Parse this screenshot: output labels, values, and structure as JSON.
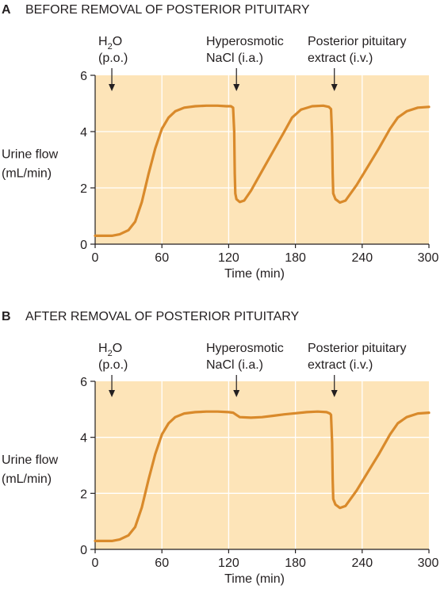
{
  "chart_data": [
    {
      "type": "line",
      "panel_letter": "A",
      "title": "BEFORE REMOVAL OF POSTERIOR PITUITARY",
      "xlabel": "Time (min)",
      "ylabel_lines": [
        "Urine flow",
        "(mL/min)"
      ],
      "xlim": [
        0,
        300
      ],
      "ylim": [
        0,
        6
      ],
      "xticks": [
        0,
        60,
        120,
        180,
        240,
        300
      ],
      "yticks": [
        0,
        2,
        4,
        6
      ],
      "grid": true,
      "background_color": "#fde4b8",
      "grid_color": "#ffffff",
      "line_color": "#d98a2b",
      "annotations": [
        {
          "x": 15,
          "lines": [
            "H2O",
            "(p.o.)"
          ]
        },
        {
          "x": 127,
          "lines": [
            "Hyperosmotic",
            "NaCl (i.a.)"
          ]
        },
        {
          "x": 215,
          "lines": [
            "Posterior pituitary",
            "extract (i.v.)"
          ]
        }
      ],
      "series": [
        {
          "points": [
            [
              0,
              0.3
            ],
            [
              15,
              0.3
            ],
            [
              22,
              0.35
            ],
            [
              30,
              0.5
            ],
            [
              36,
              0.8
            ],
            [
              42,
              1.5
            ],
            [
              48,
              2.5
            ],
            [
              54,
              3.4
            ],
            [
              60,
              4.1
            ],
            [
              66,
              4.5
            ],
            [
              72,
              4.72
            ],
            [
              80,
              4.85
            ],
            [
              90,
              4.9
            ],
            [
              100,
              4.92
            ],
            [
              110,
              4.92
            ],
            [
              118,
              4.9
            ],
            [
              122,
              4.9
            ],
            [
              124,
              4.85
            ],
            [
              125,
              4.0
            ],
            [
              125.5,
              2.5
            ],
            [
              126,
              1.8
            ],
            [
              127,
              1.6
            ],
            [
              130,
              1.5
            ],
            [
              134,
              1.55
            ],
            [
              140,
              1.9
            ],
            [
              150,
              2.6
            ],
            [
              160,
              3.3
            ],
            [
              170,
              4.0
            ],
            [
              177,
              4.5
            ],
            [
              185,
              4.78
            ],
            [
              195,
              4.9
            ],
            [
              205,
              4.92
            ],
            [
              210,
              4.88
            ],
            [
              212,
              4.8
            ],
            [
              213,
              3.8
            ],
            [
              213.5,
              2.5
            ],
            [
              214,
              1.8
            ],
            [
              216,
              1.6
            ],
            [
              220,
              1.48
            ],
            [
              225,
              1.55
            ],
            [
              235,
              2.1
            ],
            [
              245,
              2.75
            ],
            [
              255,
              3.4
            ],
            [
              265,
              4.1
            ],
            [
              272,
              4.5
            ],
            [
              280,
              4.72
            ],
            [
              290,
              4.85
            ],
            [
              300,
              4.88
            ]
          ]
        }
      ]
    },
    {
      "type": "line",
      "panel_letter": "B",
      "title": "AFTER REMOVAL OF POSTERIOR PITUITARY",
      "xlabel": "Time (min)",
      "ylabel_lines": [
        "Urine flow",
        "(mL/min)"
      ],
      "xlim": [
        0,
        300
      ],
      "ylim": [
        0,
        6
      ],
      "xticks": [
        0,
        60,
        120,
        180,
        240,
        300
      ],
      "yticks": [
        0,
        2,
        4,
        6
      ],
      "grid": true,
      "background_color": "#fde4b8",
      "grid_color": "#ffffff",
      "line_color": "#d98a2b",
      "annotations": [
        {
          "x": 15,
          "lines": [
            "H2O",
            "(p.o.)"
          ]
        },
        {
          "x": 127,
          "lines": [
            "Hyperosmotic",
            "NaCl (i.a.)"
          ]
        },
        {
          "x": 215,
          "lines": [
            "Posterior pituitary",
            "extract (i.v.)"
          ]
        }
      ],
      "series": [
        {
          "points": [
            [
              0,
              0.3
            ],
            [
              15,
              0.3
            ],
            [
              22,
              0.35
            ],
            [
              30,
              0.5
            ],
            [
              36,
              0.8
            ],
            [
              42,
              1.5
            ],
            [
              48,
              2.5
            ],
            [
              54,
              3.4
            ],
            [
              60,
              4.1
            ],
            [
              66,
              4.5
            ],
            [
              72,
              4.72
            ],
            [
              80,
              4.85
            ],
            [
              90,
              4.9
            ],
            [
              100,
              4.92
            ],
            [
              110,
              4.92
            ],
            [
              120,
              4.9
            ],
            [
              124,
              4.88
            ],
            [
              127,
              4.8
            ],
            [
              130,
              4.72
            ],
            [
              140,
              4.7
            ],
            [
              150,
              4.72
            ],
            [
              160,
              4.77
            ],
            [
              170,
              4.82
            ],
            [
              180,
              4.86
            ],
            [
              190,
              4.9
            ],
            [
              200,
              4.92
            ],
            [
              208,
              4.9
            ],
            [
              211,
              4.85
            ],
            [
              212,
              4.8
            ],
            [
              213,
              3.8
            ],
            [
              213.5,
              2.5
            ],
            [
              214,
              1.8
            ],
            [
              216,
              1.6
            ],
            [
              220,
              1.48
            ],
            [
              225,
              1.55
            ],
            [
              235,
              2.1
            ],
            [
              245,
              2.75
            ],
            [
              255,
              3.4
            ],
            [
              265,
              4.1
            ],
            [
              272,
              4.5
            ],
            [
              280,
              4.72
            ],
            [
              290,
              4.85
            ],
            [
              300,
              4.88
            ]
          ]
        }
      ]
    }
  ]
}
